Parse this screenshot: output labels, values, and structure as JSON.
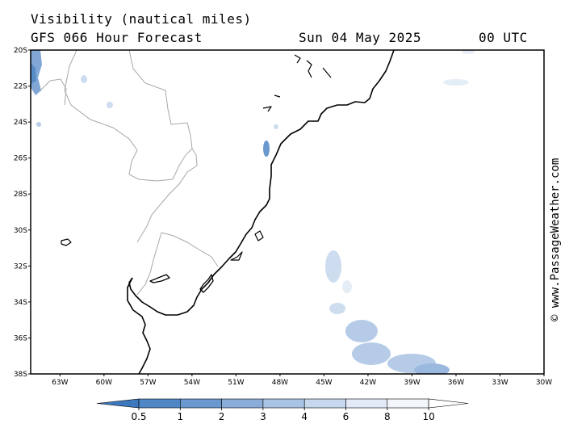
{
  "header": {
    "title": "Visibility (nautical miles)",
    "subtitle": "GFS 066 Hour Forecast",
    "date": "Sun 04 May 2025",
    "time": "00 UTC"
  },
  "credit": "© www.PassageWeather.com",
  "map": {
    "lat_ticks": [
      "20S",
      "22S",
      "24S",
      "26S",
      "28S",
      "30S",
      "32S",
      "34S",
      "36S",
      "38S"
    ],
    "lon_ticks": [
      "63W",
      "60W",
      "57W",
      "54W",
      "51W",
      "48W",
      "45W",
      "42W",
      "39W",
      "36W",
      "33W",
      "30W"
    ],
    "lat_range": [
      -20,
      -38
    ],
    "lon_range": [
      -65,
      -30
    ]
  },
  "legend": {
    "labels": [
      "0.5",
      "1",
      "2",
      "3",
      "4",
      "6",
      "8",
      "10"
    ],
    "colors": [
      "#3b78bd",
      "#4f86c6",
      "#6b98cf",
      "#8aacd9",
      "#a9c3e4",
      "#c6d7ee",
      "#e1eaf6",
      "#f3f6fb",
      "#ffffff"
    ]
  }
}
